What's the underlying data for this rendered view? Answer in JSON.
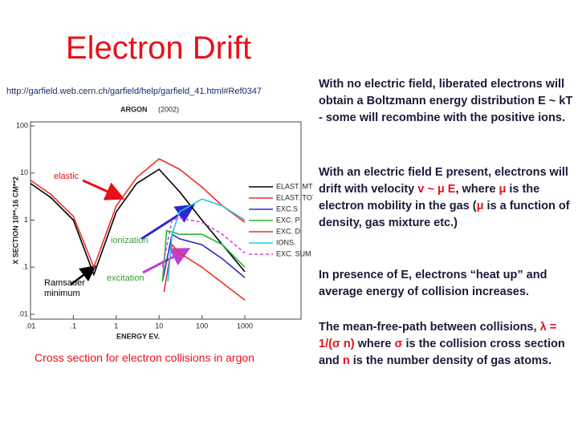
{
  "title": "Electron Drift",
  "url": "http://garfield.web.cern.ch/garfield/help/garfield_41.html#Ref0347",
  "caption": "Cross section for electron collisions in argon",
  "chart_data": {
    "type": "line",
    "title": "ARGON",
    "subtitle": "(2002)",
    "x_label": "ENERGY EV.",
    "y_label": "X SECTION 10**-16 CM**2",
    "log_x": true,
    "log_y": true,
    "xlim": [
      0.01,
      1000
    ],
    "ylim": [
      0.01,
      100
    ],
    "xticks": [
      {
        "value": 0.01,
        "label": ".01"
      },
      {
        "value": 0.1,
        "label": ".1"
      },
      1,
      10,
      100,
      1000
    ],
    "yticks": [
      {
        "value": 0.01,
        "label": ".01"
      },
      {
        "value": 0.1,
        "label": ".1"
      },
      1,
      10,
      100
    ],
    "series": [
      {
        "name": "ELAST. MT",
        "color": "#000000",
        "x": [
          0.01,
          0.03,
          0.1,
          0.3,
          1,
          3,
          10,
          30,
          100,
          300,
          1000
        ],
        "values": [
          6,
          3,
          1,
          0.07,
          1.5,
          6,
          12,
          4,
          1,
          0.3,
          0.08
        ]
      },
      {
        "name": "ELAST. TOT",
        "color": "#e8322a",
        "x": [
          0.01,
          0.03,
          0.1,
          0.3,
          1,
          3,
          10,
          30,
          100,
          300,
          1000
        ],
        "values": [
          7,
          3.5,
          1.2,
          0.1,
          2,
          8,
          20,
          12,
          5,
          2,
          0.9
        ]
      },
      {
        "name": "EXC.S",
        "color": "#2a2ad0",
        "x": [
          12,
          20,
          30,
          100,
          300,
          1000
        ],
        "values": [
          0.05,
          0.5,
          0.4,
          0.3,
          0.15,
          0.06
        ]
      },
      {
        "name": "EXC. P",
        "color": "#22b83a",
        "x": [
          12,
          15,
          30,
          100,
          300,
          1000
        ],
        "values": [
          0.05,
          0.6,
          0.5,
          0.5,
          0.3,
          0.1
        ]
      },
      {
        "name": "EXC. D",
        "color": "#e8322a",
        "x": [
          13,
          20,
          30,
          100,
          1000
        ],
        "values": [
          0.03,
          0.3,
          0.2,
          0.1,
          0.02
        ]
      },
      {
        "name": "IONS.",
        "color": "#22c8e0",
        "x": [
          16,
          20,
          30,
          100,
          300,
          1000
        ],
        "values": [
          0.05,
          0.5,
          1.5,
          2.8,
          2,
          1
        ]
      },
      {
        "name": "EXC. SUM",
        "color": "#e040e0",
        "dashed": true,
        "x": [
          12,
          20,
          30,
          100,
          300,
          1000
        ],
        "values": [
          0.1,
          1,
          1.1,
          0.9,
          0.5,
          0.2
        ]
      }
    ],
    "annotations": [
      "elastic",
      "ionization",
      "excitation",
      "Ramsauer minimum"
    ]
  },
  "paragraphs": [
    [
      {
        "text": "With no electric field, liberated electrons will  obtain a Boltzmann energy distribution E ~ kT - some will recombine with the positive ions."
      }
    ],
    [
      {
        "text": "With an electric field E present, electrons will drift with velocity "
      },
      {
        "text": "v ~ μ E",
        "color": "#e8101a"
      },
      {
        "text": ", where "
      },
      {
        "text": "μ",
        "color": "#e8101a"
      },
      {
        "text": " is the electron mobility in the gas ("
      },
      {
        "text": "μ",
        "color": "#e8101a"
      },
      {
        "text": " is a function of density, gas mixture etc.)"
      }
    ],
    [
      {
        "text": "In presence of E, electrons “heat up” and average energy of collision increases."
      }
    ],
    [
      {
        "text": "The mean-free-path between collisions, "
      },
      {
        "text": "λ = 1/(σ n)",
        "color": "#e8101a"
      },
      {
        "text": " where "
      },
      {
        "text": "σ",
        "color": "#e8101a"
      },
      {
        "text": " is the collision cross section and "
      },
      {
        "text": "n",
        "color": "#e8101a"
      },
      {
        "text": " is the number density of gas atoms."
      }
    ]
  ]
}
